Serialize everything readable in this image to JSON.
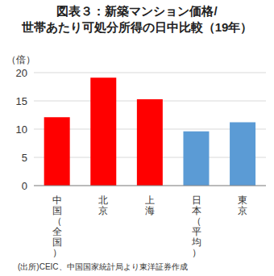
{
  "chart_data": {
    "type": "bar",
    "title": "図表３：新築マンション価格/世帯あたり可処分所得の日中比較（19年）",
    "y_label": "（倍）",
    "source": "(出所)CEIC、中国国家統計局より東洋証券作成",
    "categories": [
      "中国（全国）",
      "北京",
      "上海",
      "日本（平均）",
      "東京"
    ],
    "values": [
      12.1,
      19.1,
      15.3,
      9.6,
      11.2
    ],
    "colors": [
      "#ff0000",
      "#ff0000",
      "#ff0000",
      "#5b9bd5",
      "#5b9bd5"
    ],
    "ylim": [
      0,
      20
    ],
    "yticks": [
      0,
      5,
      10,
      15,
      20
    ],
    "grid": true
  }
}
